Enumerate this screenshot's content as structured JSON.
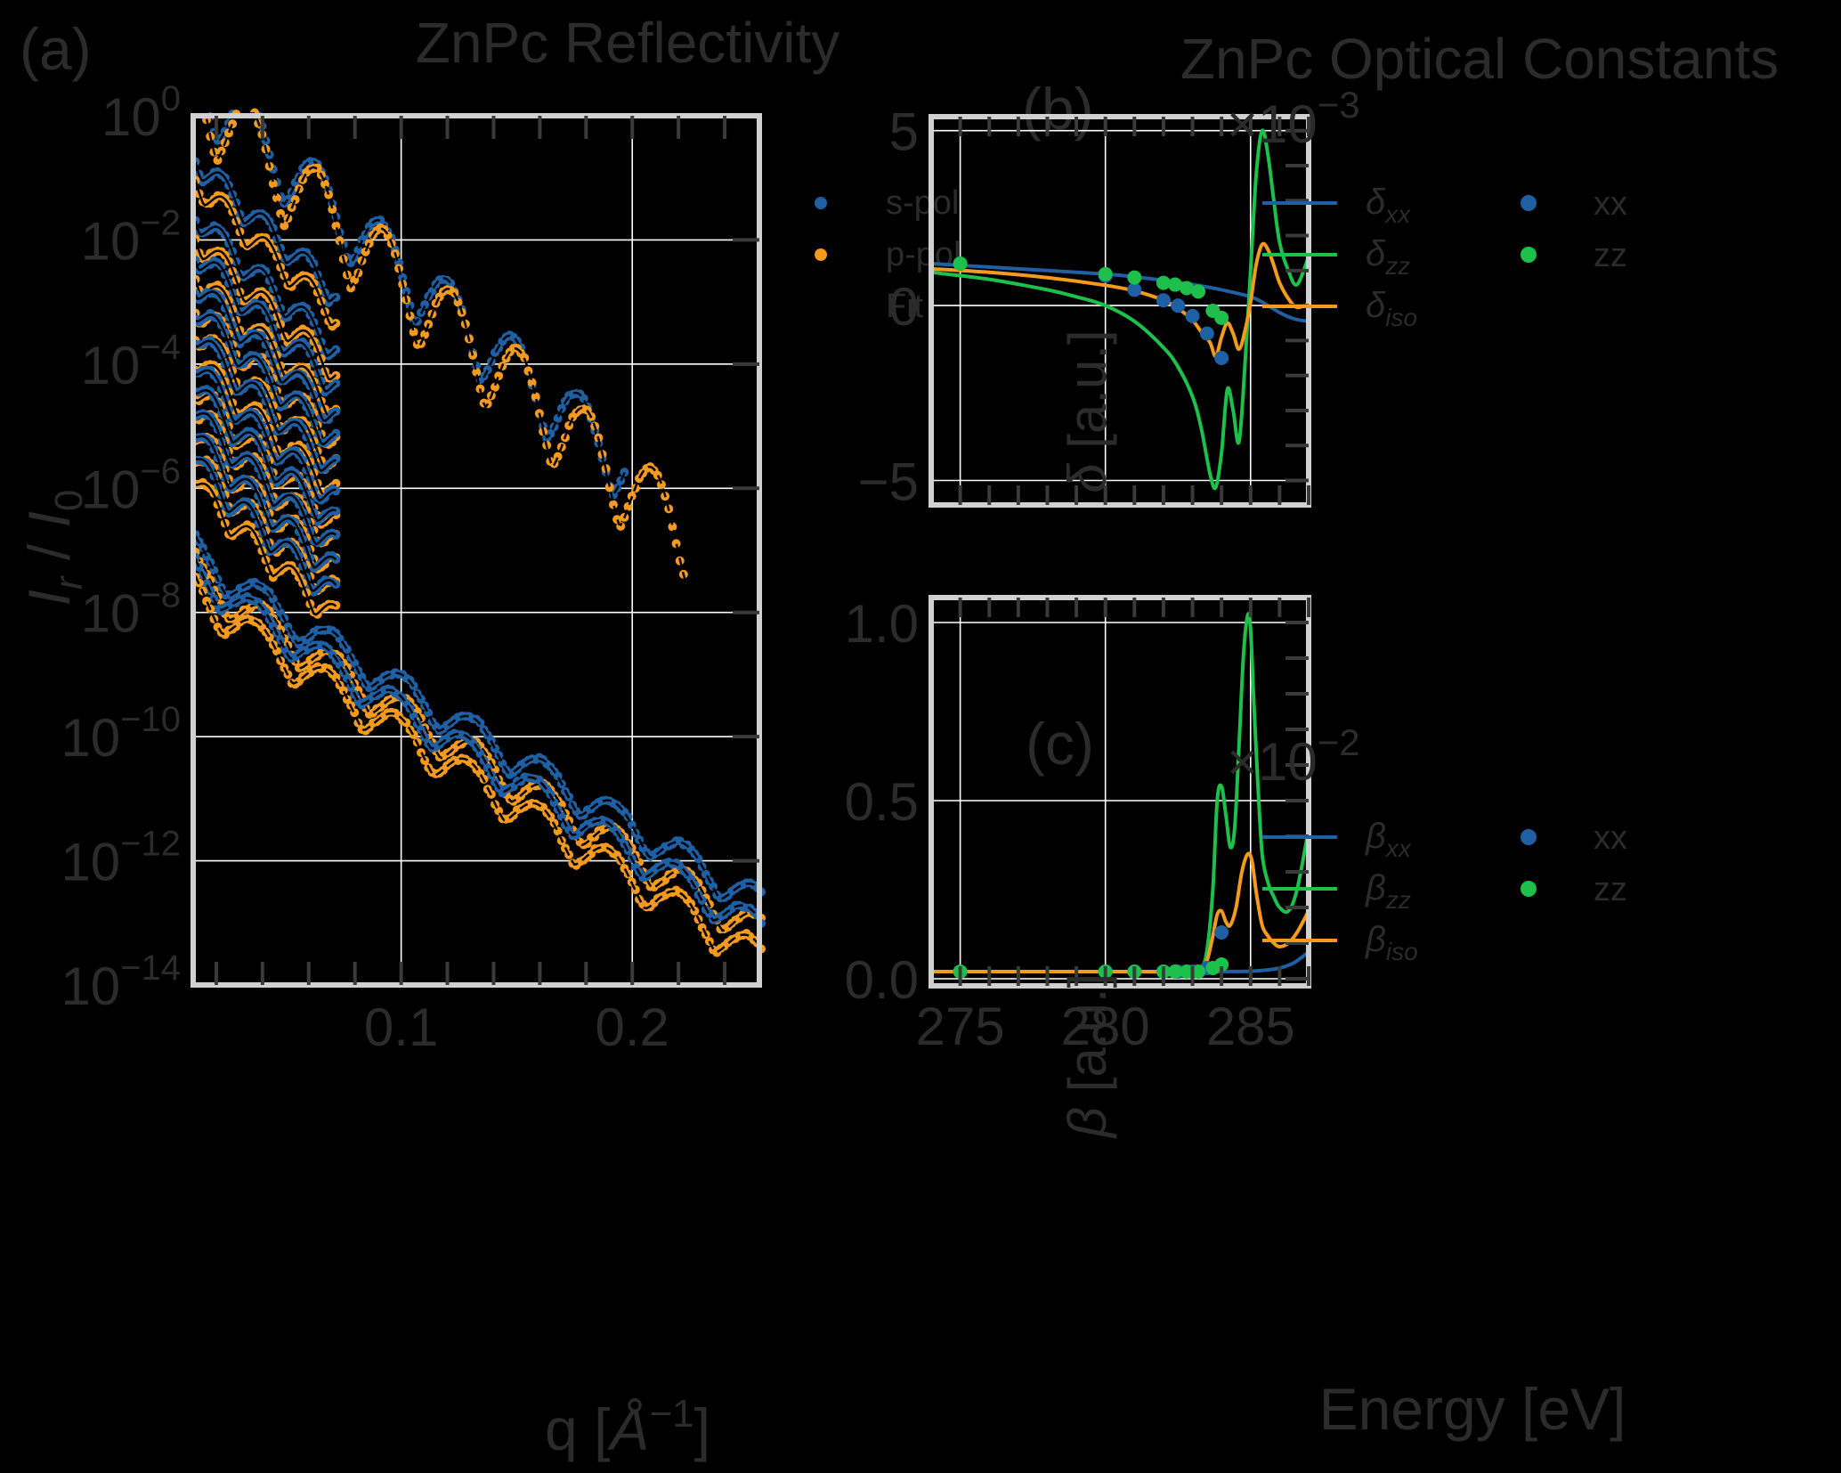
{
  "figure": {
    "panel_a_label": "(a)",
    "panel_b_label": "(b)",
    "panel_c_label": "(c)",
    "title_left": "ZnPc Reflectivity",
    "title_right": "ZnPc Optical Constants"
  },
  "colors": {
    "background": "#000000",
    "text": "#2b2b2b",
    "frame": "#d0d0d0",
    "grid": "#ffffff",
    "blue": "#1f5fa3",
    "orange": "#f39a1f",
    "green": "#1cc04a"
  },
  "chart_data": [
    {
      "id": "a",
      "type": "scatter",
      "title": "ZnPc Reflectivity",
      "xlabel": "q [Å⁻¹]",
      "ylabel": "I_r / I_0",
      "xscale": "linear",
      "yscale": "log",
      "xlim": [
        0.01,
        0.255
      ],
      "ylim": [
        1e-14,
        1
      ],
      "xticks": [
        0.1,
        0.2
      ],
      "xtick_labels": [
        "0.1",
        "0.2"
      ],
      "yticks_exp": [
        0,
        -2,
        -4,
        -6,
        -8,
        -10,
        -12,
        -14
      ],
      "grid": true,
      "legend": {
        "position": "top-right",
        "entries": [
          {
            "label": "s-pol",
            "marker": "dot",
            "color": "#1f5fa3"
          },
          {
            "label": "p-pol",
            "marker": "dot",
            "color": "#f39a1f"
          },
          {
            "label": "Fit",
            "marker": "dashed-line",
            "color": "#000000"
          }
        ]
      },
      "stacked_short_scans": {
        "q_range": [
          0.011,
          0.072
        ],
        "count": 12,
        "start_log10": [
          0.0,
          -0.9,
          -1.8,
          -2.4,
          -2.9,
          -3.3,
          -3.75,
          -4.25,
          -4.6,
          -5.0,
          -5.4,
          -5.8
        ],
        "ratio_scan_index": 0
      },
      "long_scans": [
        {
          "q_range": [
            0.011,
            0.256
          ],
          "start_log10": -7.3,
          "decay_per_A": 20.0,
          "fringe_period": 0.0305
        },
        {
          "q_range": [
            0.011,
            0.256
          ],
          "start_log10": -7.6,
          "decay_per_A": 20.5,
          "fringe_period": 0.0305
        }
      ],
      "ratio_scan_oscillation": {
        "period": 0.0285,
        "decay_per_A": 30.0,
        "p_offset_log10": -0.25
      }
    },
    {
      "id": "b",
      "type": "line",
      "xlabel": "",
      "ylabel": "δ [a.u.]",
      "multiplier_label": "×10⁻³",
      "xlim": [
        274.0,
        287.0
      ],
      "ylim": [
        -5.7,
        5.4
      ],
      "xticks": [
        275,
        280,
        285
      ],
      "yticks": [
        -5,
        0,
        5
      ],
      "ytick_labels": [
        "−5",
        "0",
        "5"
      ],
      "grid": true,
      "legend": {
        "position": "top",
        "entries": [
          {
            "label": "δ",
            "sub": "xx",
            "marker": "line",
            "color": "#1f5fa3"
          },
          {
            "label": "δ",
            "sub": "zz",
            "marker": "line",
            "color": "#1cc04a"
          },
          {
            "label": "δ",
            "sub": "iso",
            "marker": "line",
            "color": "#f39a1f"
          },
          {
            "label": "xx",
            "marker": "dot",
            "color": "#1f5fa3"
          },
          {
            "label": "zz",
            "marker": "dot",
            "color": "#1cc04a"
          }
        ]
      },
      "series": [
        {
          "name": "δ_xx",
          "color": "#1f5fa3",
          "x": [
            274,
            276,
            278,
            280,
            281,
            282,
            283,
            284,
            285,
            285.5,
            286,
            286.5,
            287
          ],
          "y": [
            1.2,
            1.1,
            1.0,
            0.9,
            0.82,
            0.72,
            0.6,
            0.45,
            0.25,
            0.05,
            -0.2,
            -0.38,
            -0.45
          ]
        },
        {
          "name": "δ_zz",
          "color": "#1cc04a",
          "x": [
            274,
            276,
            278,
            279,
            280,
            281,
            282,
            282.5,
            283,
            283.3,
            283.6,
            283.8,
            284.0,
            284.2,
            284.4,
            284.6,
            284.8,
            285.0,
            285.2,
            285.4,
            285.6,
            285.8,
            286.0,
            286.3,
            286.6,
            287.0
          ],
          "y": [
            0.95,
            0.75,
            0.45,
            0.25,
            0.0,
            -0.45,
            -1.2,
            -1.75,
            -2.6,
            -3.5,
            -4.8,
            -5.2,
            -4.2,
            -2.4,
            -3.0,
            -3.9,
            -1.8,
            1.0,
            3.8,
            5.0,
            4.3,
            3.0,
            1.8,
            1.0,
            0.6,
            1.4
          ]
        },
        {
          "name": "δ_iso",
          "color": "#f39a1f",
          "x": [
            274,
            276,
            278,
            280,
            281,
            282,
            282.5,
            283,
            283.3,
            283.6,
            283.8,
            284.0,
            284.2,
            284.4,
            284.6,
            284.8,
            285.0,
            285.2,
            285.4,
            285.6,
            285.8,
            286.0,
            286.3,
            286.6,
            287.0
          ],
          "y": [
            1.05,
            0.95,
            0.8,
            0.58,
            0.42,
            0.15,
            -0.08,
            -0.42,
            -0.75,
            -1.05,
            -1.45,
            -0.9,
            -0.5,
            -0.8,
            -1.25,
            -0.75,
            0.1,
            1.2,
            1.75,
            1.6,
            1.15,
            0.65,
            0.2,
            -0.05,
            0.05
          ]
        }
      ],
      "points": [
        {
          "name": "xx",
          "color": "#1f5fa3",
          "x": [
            275,
            280,
            281,
            282,
            282.5,
            283,
            283.5,
            284
          ],
          "y": [
            1.2,
            0.85,
            0.45,
            0.15,
            0.0,
            -0.3,
            -0.8,
            -1.5
          ]
        },
        {
          "name": "zz",
          "color": "#1cc04a",
          "x": [
            275,
            280,
            281,
            282,
            282.4,
            282.8,
            283.2,
            283.7,
            284
          ],
          "y": [
            1.2,
            0.9,
            0.8,
            0.65,
            0.6,
            0.5,
            0.4,
            -0.15,
            -0.35
          ]
        }
      ]
    },
    {
      "id": "c",
      "type": "line",
      "xlabel": "Energy [eV]",
      "ylabel": "β [a.u.]",
      "multiplier_label": "×10⁻²",
      "xlim": [
        274.0,
        287.0
      ],
      "ylim": [
        -0.02,
        1.07
      ],
      "xticks": [
        275,
        280,
        285
      ],
      "xtick_labels": [
        "275",
        "280",
        "285"
      ],
      "yticks": [
        0.0,
        0.5,
        1.0
      ],
      "ytick_labels": [
        "0.0",
        "0.5",
        "1.0"
      ],
      "grid": true,
      "legend": {
        "position": "top",
        "entries": [
          {
            "label": "β",
            "sub": "xx",
            "marker": "line",
            "color": "#1f5fa3"
          },
          {
            "label": "β",
            "sub": "zz",
            "marker": "line",
            "color": "#1cc04a"
          },
          {
            "label": "β",
            "sub": "iso",
            "marker": "line",
            "color": "#f39a1f"
          },
          {
            "label": "xx",
            "marker": "dot",
            "color": "#1f5fa3"
          },
          {
            "label": "zz",
            "marker": "dot",
            "color": "#1cc04a"
          }
        ]
      },
      "series": [
        {
          "name": "β_xx",
          "color": "#1f5fa3",
          "x": [
            274,
            280,
            283,
            284,
            285,
            285.5,
            286,
            286.5,
            287
          ],
          "y": [
            0.02,
            0.02,
            0.02,
            0.02,
            0.021,
            0.024,
            0.03,
            0.045,
            0.075
          ]
        },
        {
          "name": "β_zz",
          "color": "#1cc04a",
          "x": [
            274,
            280,
            283,
            283.3,
            283.5,
            283.7,
            283.85,
            284.0,
            284.15,
            284.3,
            284.45,
            284.6,
            284.75,
            284.9,
            285.0,
            285.1,
            285.25,
            285.4,
            285.6,
            285.8,
            286.0,
            286.3,
            286.6,
            287.0
          ],
          "y": [
            0.02,
            0.02,
            0.02,
            0.03,
            0.08,
            0.25,
            0.5,
            0.54,
            0.46,
            0.37,
            0.42,
            0.65,
            0.9,
            1.02,
            0.98,
            0.8,
            0.55,
            0.35,
            0.27,
            0.23,
            0.2,
            0.19,
            0.25,
            0.42
          ]
        },
        {
          "name": "β_iso",
          "color": "#f39a1f",
          "x": [
            274,
            280,
            283,
            283.3,
            283.5,
            283.7,
            283.85,
            284.0,
            284.15,
            284.3,
            284.5,
            284.7,
            284.9,
            285.05,
            285.2,
            285.4,
            285.6,
            285.8,
            286.0,
            286.3,
            286.6,
            287.0
          ],
          "y": [
            0.02,
            0.02,
            0.02,
            0.025,
            0.05,
            0.12,
            0.18,
            0.19,
            0.16,
            0.15,
            0.2,
            0.3,
            0.35,
            0.33,
            0.24,
            0.15,
            0.12,
            0.1,
            0.09,
            0.1,
            0.13,
            0.19
          ]
        }
      ],
      "points": [
        {
          "name": "xx",
          "color": "#1f5fa3",
          "x": [
            275,
            280,
            281,
            282,
            282.5,
            283,
            283.5,
            284
          ],
          "y": [
            0.02,
            0.02,
            0.02,
            0.02,
            0.02,
            0.02,
            0.03,
            0.13
          ]
        },
        {
          "name": "zz",
          "color": "#1cc04a",
          "x": [
            275,
            280,
            281,
            282,
            282.4,
            282.8,
            283.2,
            283.7,
            284
          ],
          "y": [
            0.02,
            0.02,
            0.02,
            0.02,
            0.02,
            0.02,
            0.02,
            0.03,
            0.04
          ]
        }
      ]
    }
  ]
}
